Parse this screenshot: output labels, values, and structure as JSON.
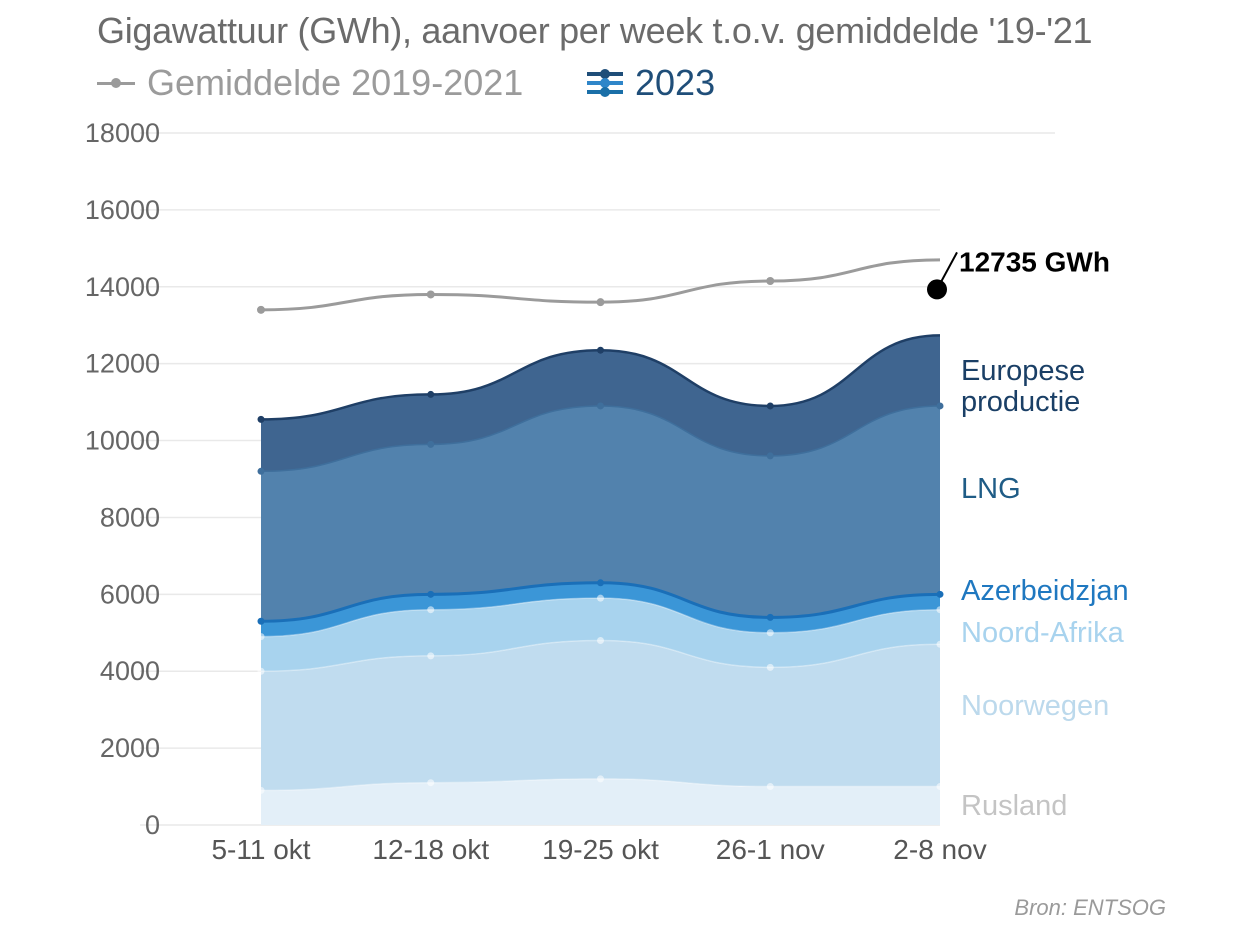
{
  "title": "Gigawattuur (GWh), aanvoer per week t.o.v. gemiddelde '19-'21",
  "legend": {
    "avg_label": "Gemiddelde 2019-2021",
    "year_label": "2023",
    "avg_color": "#9b9b9b",
    "year_colors": [
      "#1f4e79",
      "#2f86c9",
      "#1a6fa8"
    ]
  },
  "source": "Bron: ENTSOG",
  "chart_data": {
    "type": "area",
    "stacked": true,
    "categories": [
      "5-11 okt",
      "12-18 okt",
      "19-25 okt",
      "26-1 nov",
      "2-8 nov"
    ],
    "ylim": [
      0,
      18000
    ],
    "yticks": [
      "0",
      "2000",
      "4000",
      "6000",
      "8000",
      "10000",
      "12000",
      "14000",
      "16000",
      "18000"
    ],
    "grid": true,
    "series": [
      {
        "name": "Rusland",
        "values": [
          900,
          1100,
          1200,
          1000,
          1000
        ],
        "color": "#e3eff8",
        "label_color": "#c4c4c4"
      },
      {
        "name": "Noorwegen",
        "values": [
          3100,
          3300,
          3600,
          3100,
          3700
        ],
        "color": "#c0dcef",
        "label_color": "#bcd9ec"
      },
      {
        "name": "Noord-Afrika",
        "values": [
          900,
          1200,
          1100,
          900,
          900
        ],
        "color": "#a8d3ee",
        "label_color": "#a8d3ee"
      },
      {
        "name": "Azerbeidzjan",
        "values": [
          400,
          400,
          400,
          400,
          400
        ],
        "color": "#3b96d7",
        "label_color": "#1f78c0"
      },
      {
        "name": "LNG",
        "values": [
          3900,
          3900,
          4600,
          4200,
          4900
        ],
        "color": "#5282ad",
        "label_color": "#1f5c86"
      },
      {
        "name": "Europese productie",
        "values": [
          1350,
          1300,
          1450,
          1300,
          1835
        ],
        "color": "#3f6590",
        "label_color": "#1a3f66"
      }
    ],
    "average": {
      "name": "Gemiddelde 2019-2021",
      "values": [
        13400,
        13800,
        13600,
        14150,
        14700
      ]
    },
    "annotation": {
      "text": "12735 GWh",
      "value": 12735,
      "category": "2-8 nov"
    }
  }
}
